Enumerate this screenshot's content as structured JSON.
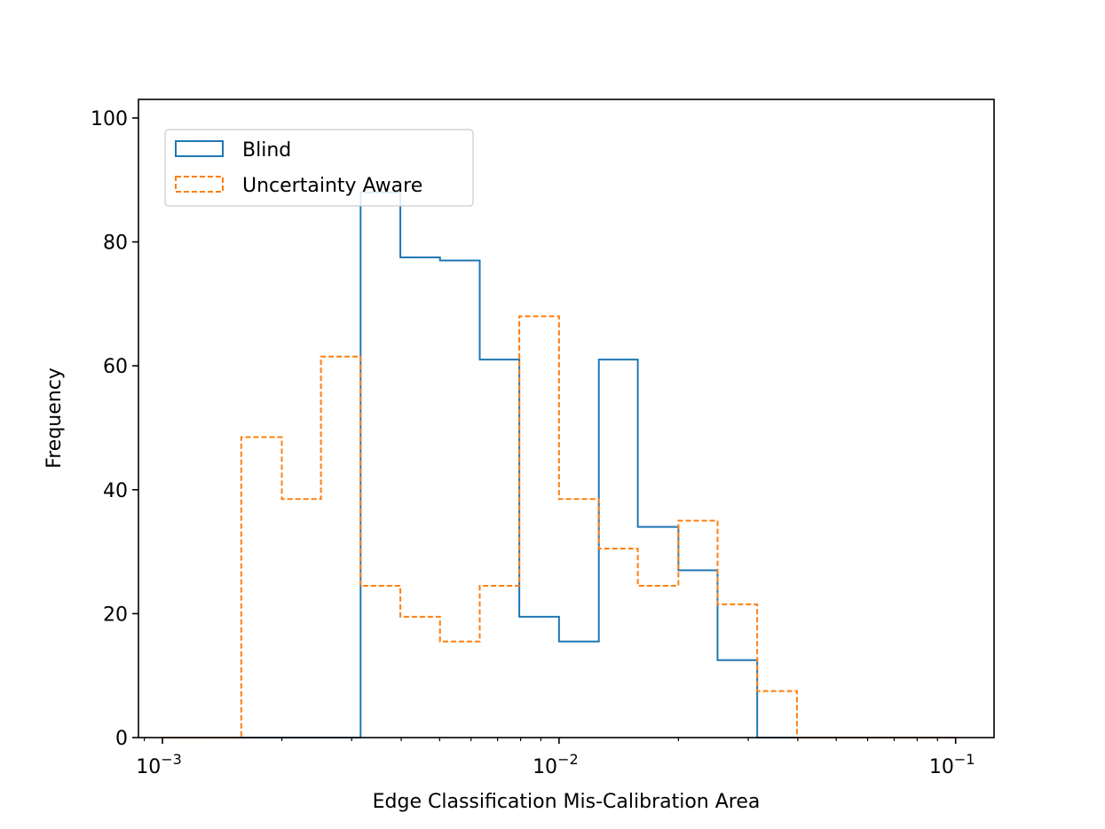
{
  "chart_data": {
    "type": "histogram",
    "xlabel": "Edge Classification Mis-Calibration Area",
    "ylabel": "Frequency",
    "xscale": "log",
    "xlim": [
      0.00087,
      0.125
    ],
    "ylim": [
      0,
      103
    ],
    "x_ticks": [
      {
        "value": 0.001,
        "base": "10",
        "exp": "−3"
      },
      {
        "value": 0.01,
        "base": "10",
        "exp": "−2"
      },
      {
        "value": 0.1,
        "base": "10",
        "exp": "−1"
      }
    ],
    "y_ticks": [
      0,
      20,
      40,
      60,
      80,
      100
    ],
    "legend_position": "upper left",
    "bin_edges": [
      0.001,
      0.00126,
      0.00158,
      0.002,
      0.00251,
      0.00316,
      0.00398,
      0.00501,
      0.00631,
      0.00794,
      0.01,
      0.0126,
      0.0158,
      0.02,
      0.0251,
      0.0316,
      0.0398,
      0.0501,
      0.0631,
      0.0794,
      0.1
    ],
    "series": [
      {
        "name": "Blind",
        "color": "#1f77b4",
        "linestyle": "solid",
        "values": [
          0,
          0,
          0,
          0,
          0,
          88,
          77.5,
          77,
          61,
          19.5,
          15.5,
          61,
          34,
          27,
          12.5,
          0,
          0,
          0,
          0,
          0
        ]
      },
      {
        "name": "Uncertainty Aware",
        "color": "#ff7f0e",
        "linestyle": "dashed",
        "values": [
          0,
          0,
          48.5,
          38.5,
          61.5,
          24.5,
          19.5,
          15.5,
          24.5,
          68,
          38.5,
          30.5,
          24.5,
          35,
          21.5,
          7.5,
          0,
          0,
          0,
          0
        ]
      }
    ]
  }
}
